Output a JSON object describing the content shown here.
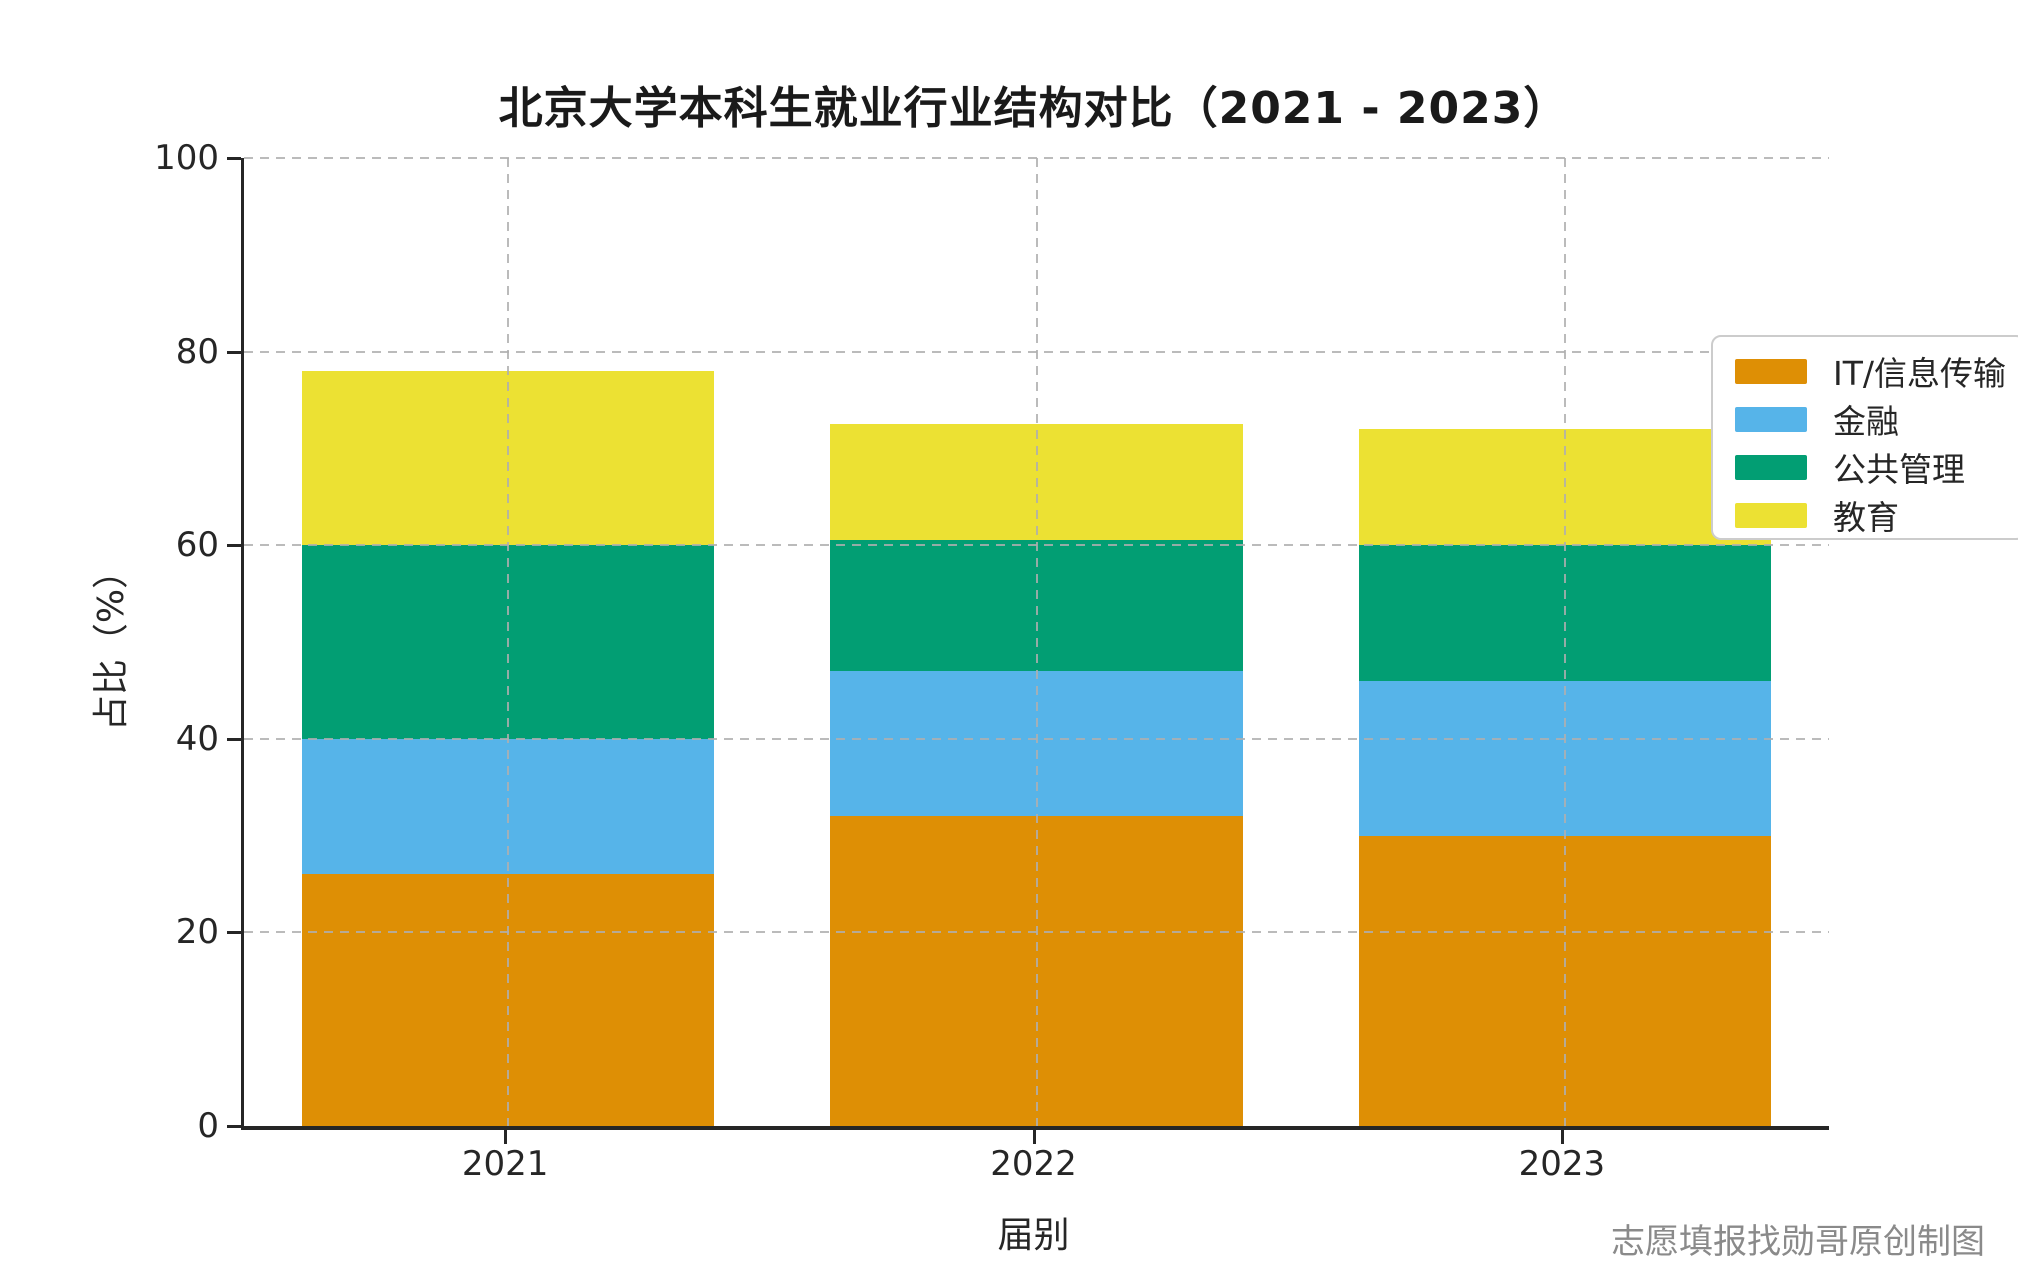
{
  "title": "北京大学本科生就业行业结构对比（2021 - 2023）",
  "footer": "志愿填报找勋哥原创制图",
  "chart_data": {
    "type": "bar",
    "stacked": true,
    "title": "北京大学本科生就业行业结构对比（2021 - 2023）",
    "xlabel": "届别",
    "ylabel": "占比（%）",
    "categories": [
      "2021",
      "2022",
      "2023"
    ],
    "series": [
      {
        "name": "IT/信息传输",
        "color": "#DE8F05",
        "values": [
          26,
          32,
          30
        ]
      },
      {
        "name": "金融",
        "color": "#56B4E9",
        "values": [
          14,
          15,
          16
        ]
      },
      {
        "name": "公共管理",
        "color": "#029E73",
        "values": [
          20,
          13.5,
          14
        ]
      },
      {
        "name": "教育",
        "color": "#ECE133",
        "values": [
          18,
          12,
          12
        ]
      }
    ],
    "stack_totals": [
      78,
      72.5,
      72
    ],
    "ylim": [
      0,
      100
    ],
    "yticks": [
      0,
      20,
      40,
      60,
      80,
      100
    ],
    "grid": true,
    "grid_style": "dashed",
    "legend_position": "upper right",
    "legend_entries": [
      "IT/信息传输",
      "金融",
      "公共管理",
      "教育"
    ]
  }
}
